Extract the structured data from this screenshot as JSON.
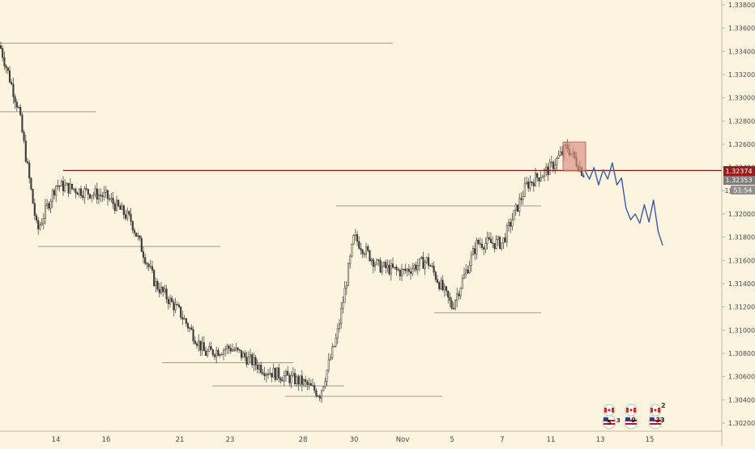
{
  "colors": {
    "background": "#fdf4df",
    "candle": "#3a3a3a",
    "level_line": "#9a9a9a",
    "resistance_line": "#8b1a1a",
    "price_badge": "#9e1b1b",
    "bid_badge": "#7c7c7c",
    "timer_badge": "#8f8f8f",
    "highlight_box": "#d98c7f",
    "projection": "#3b5ba8",
    "axis_text": "#4a4a4a"
  },
  "axis": {
    "y_ticks": [
      "1.33800",
      "1.33600",
      "1.33400",
      "1.33200",
      "1.33000",
      "1.32800",
      "1.32600",
      "1.32400",
      "1.32200",
      "1.32000",
      "1.31800",
      "1.31600",
      "1.31400",
      "1.31200",
      "1.31000",
      "1.30800",
      "1.30600",
      "1.30400",
      "1.30200"
    ],
    "x_ticks": [
      "14",
      "16",
      "21",
      "23",
      "28",
      "30",
      "Nov",
      "5",
      "7",
      "11",
      "13",
      "15"
    ]
  },
  "badges": {
    "resistance_price": "1.32374",
    "current_price": "1.32353",
    "countdown": "51:54",
    "countdown_prefix": "1"
  },
  "events": [
    {
      "flag": "ca-flag-icon",
      "label": "",
      "count": ""
    },
    {
      "flag": "ca-flag-icon",
      "label": "",
      "count": ""
    },
    {
      "flag": "ca-flag-icon",
      "label": "",
      "count": "2"
    },
    {
      "flag": "us-flag-icon",
      "label": "5",
      "count": "3"
    },
    {
      "flag": "us-flag-icon",
      "label": "9",
      "count": ""
    },
    {
      "flag": "us-flag-icon",
      "label": "33",
      "count": ""
    }
  ],
  "chart_data": {
    "type": "candlestick",
    "symbol": "",
    "y_range": [
      1.301,
      1.339
    ],
    "x_labels": [
      "14",
      "16",
      "21",
      "23",
      "28",
      "30",
      "Nov",
      "5",
      "7",
      "11",
      "13",
      "15"
    ],
    "y_ticks": [
      1.338,
      1.336,
      1.334,
      1.332,
      1.33,
      1.328,
      1.326,
      1.324,
      1.322,
      1.32,
      1.318,
      1.316,
      1.314,
      1.312,
      1.31,
      1.308,
      1.306,
      1.304,
      1.302
    ],
    "price_path": [
      {
        "label": "start",
        "price": 1.3345
      },
      {
        "label": "",
        "price": 1.329
      },
      {
        "label": "",
        "price": 1.3185
      },
      {
        "label": "14",
        "price": 1.3225
      },
      {
        "label": "16",
        "price": 1.3215
      },
      {
        "label": "",
        "price": 1.3195
      },
      {
        "label": "",
        "price": 1.314
      },
      {
        "label": "21",
        "price": 1.3115
      },
      {
        "label": "",
        "price": 1.308
      },
      {
        "label": "23",
        "price": 1.3085
      },
      {
        "label": "",
        "price": 1.3065
      },
      {
        "label": "28",
        "price": 1.3055
      },
      {
        "label": "",
        "price": 1.3045
      },
      {
        "label": "",
        "price": 1.3095
      },
      {
        "label": "30",
        "price": 1.318
      },
      {
        "label": "",
        "price": 1.3155
      },
      {
        "label": "Nov",
        "price": 1.315
      },
      {
        "label": "",
        "price": 1.316
      },
      {
        "label": "5",
        "price": 1.312
      },
      {
        "label": "",
        "price": 1.3175
      },
      {
        "label": "7",
        "price": 1.3175
      },
      {
        "label": "",
        "price": 1.3225
      },
      {
        "label": "11",
        "price": 1.324
      },
      {
        "label": "",
        "price": 1.3258
      },
      {
        "label": "last",
        "price": 1.32353
      }
    ],
    "horizontal_levels": [
      {
        "price": 1.3347,
        "from": "start",
        "to": "Nov"
      },
      {
        "price": 1.3288,
        "from": "start",
        "to": "16"
      },
      {
        "price": 1.3172,
        "from": "14",
        "to": "23"
      },
      {
        "price": 1.3072,
        "from": "21",
        "to": "28"
      },
      {
        "price": 1.3052,
        "from": "23",
        "to": "30"
      },
      {
        "price": 1.3043,
        "from": "28",
        "to": "5"
      },
      {
        "price": 1.3207,
        "from": "30",
        "to": "11"
      },
      {
        "price": 1.3115,
        "from": "5",
        "to": "11"
      }
    ],
    "resistance": 1.32374,
    "highlight_zone": {
      "price_low": 1.3237,
      "price_high": 1.3262
    },
    "projection": [
      1.32374,
      1.323,
      1.324,
      1.3225,
      1.3238,
      1.323,
      1.3244,
      1.3225,
      1.3231,
      1.3205,
      1.3195,
      1.32,
      1.3192,
      1.3208,
      1.3193,
      1.3212,
      1.3185,
      1.3173
    ]
  }
}
